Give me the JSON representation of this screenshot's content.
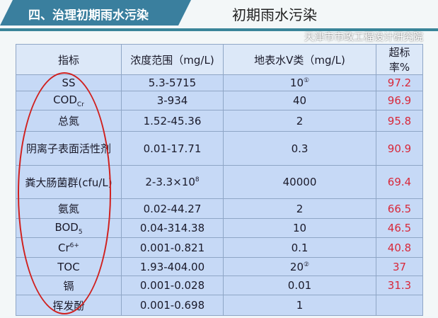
{
  "header": {
    "section_title": "四、治理初期雨水污染",
    "slide_title": "初期雨水污染"
  },
  "table": {
    "columns": [
      "指标",
      "浓度范围（mg/L)",
      "地表水V类（mg/L)",
      "超标率%"
    ],
    "rows": [
      {
        "name": "SS",
        "range": "5.3-5715",
        "standard": "10",
        "note": "①",
        "rate": "97.2"
      },
      {
        "name": "COD",
        "name_sub": "Cr",
        "range": "3-934",
        "standard": "40",
        "rate": "96.9"
      },
      {
        "name": "总氮",
        "range": "1.52-45.36",
        "standard": "2",
        "rate": "95.8"
      },
      {
        "name": "阴离子表面活性剂",
        "range": "0.01-17.71",
        "standard": "0.3",
        "rate": "90.9"
      },
      {
        "name": "粪大肠菌群(cfu/L)",
        "range": "2-3.3×10",
        "range_sup": "8",
        "standard": "40000",
        "rate": "69.4"
      },
      {
        "name": "氨氮",
        "range": "0.02-44.27",
        "standard": "2",
        "rate": "66.5"
      },
      {
        "name": "BOD",
        "name_sub": "5",
        "range": "0.04-314.38",
        "standard": "10",
        "rate": "46.5"
      },
      {
        "name": "Cr",
        "name_sup": "6+",
        "range": "0.001-0.821",
        "standard": "0.1",
        "rate": "40.8"
      },
      {
        "name": "TOC",
        "range": "1.93-404.00",
        "standard": "20",
        "note": "②",
        "rate": "37"
      },
      {
        "name": "镉",
        "range": "0.001-0.028",
        "standard": "0.01",
        "rate": "31.3"
      },
      {
        "name": "挥发酚",
        "range": "0.001-0.698",
        "standard": "1",
        "rate": ""
      }
    ]
  },
  "watermark": "天津市市政工程设计研究院",
  "colors": {
    "rate": "#d8283a",
    "ellipse": "#d0201e",
    "banner": "#3a7f9e"
  }
}
